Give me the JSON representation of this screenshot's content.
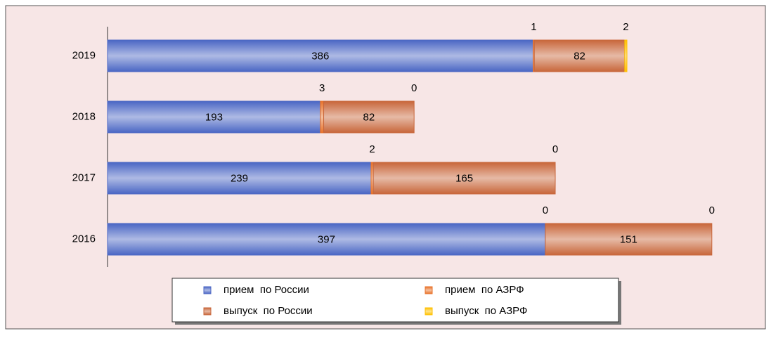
{
  "chart_data": {
    "type": "stacked-barh",
    "categories": [
      "2019",
      "2018",
      "2017",
      "2016"
    ],
    "series": [
      {
        "name": "прием  по России",
        "color": "#4a66c4",
        "values": [
          386,
          193,
          239,
          397
        ]
      },
      {
        "name": "прием  по АЗРФ",
        "color": "#e8722a",
        "values": [
          1,
          3,
          2,
          0
        ]
      },
      {
        "name": "выпуск  по России",
        "color": "#c8663a",
        "values": [
          82,
          82,
          165,
          151
        ]
      },
      {
        "name": "выпуск  по АЗРФ",
        "color": "#ffc000",
        "values": [
          2,
          0,
          0,
          0
        ]
      }
    ],
    "xlim": [
      0,
      594
    ],
    "legend": "bottom"
  }
}
